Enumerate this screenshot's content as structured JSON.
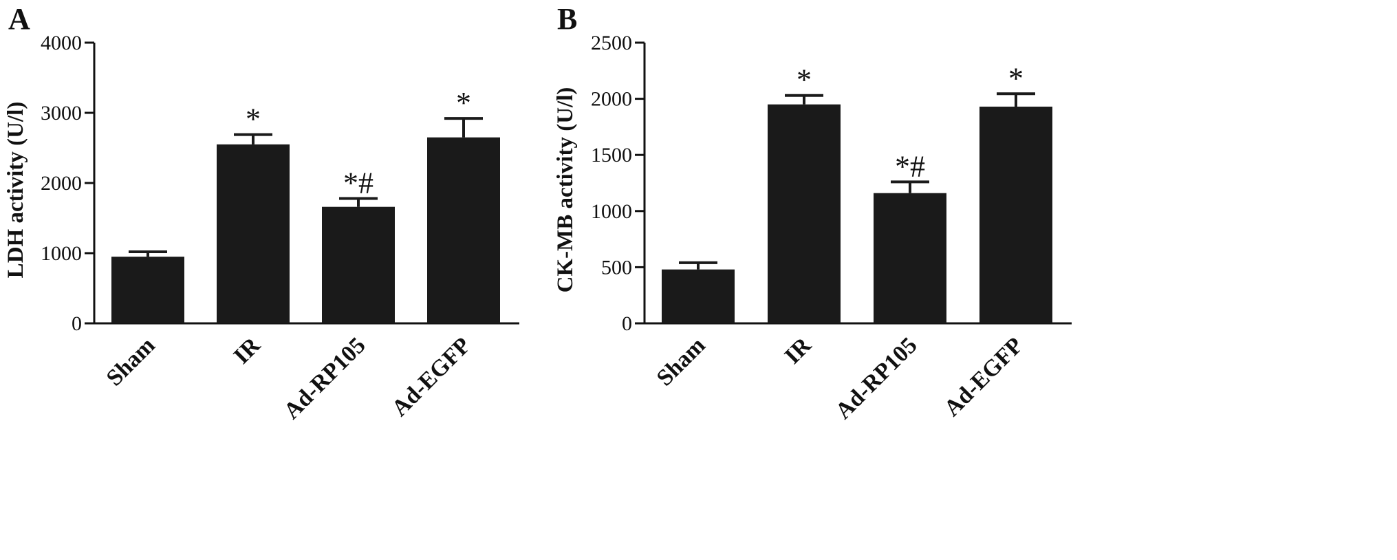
{
  "chart_data": [
    {
      "panel": "A",
      "type": "bar",
      "ylabel": "LDH activity (U/l)",
      "ylim": [
        0,
        4000
      ],
      "yticks": [
        0,
        1000,
        2000,
        3000,
        4000
      ],
      "categories": [
        "Sham",
        "IR",
        "Ad-RP105",
        "Ad-EGFP"
      ],
      "values": [
        950,
        2550,
        1660,
        2650
      ],
      "errors": [
        70,
        140,
        120,
        270
      ],
      "annotations": [
        "",
        "*",
        "*#",
        "*"
      ],
      "bar_color": "#1a1a1a"
    },
    {
      "panel": "B",
      "type": "bar",
      "ylabel": "CK-MB activity (U/l)",
      "ylim": [
        0,
        2500
      ],
      "yticks": [
        0,
        500,
        1000,
        1500,
        2000,
        2500
      ],
      "categories": [
        "Sham",
        "IR",
        "Ad-RP105",
        "Ad-EGFP"
      ],
      "values": [
        480,
        1950,
        1160,
        1930
      ],
      "errors": [
        60,
        80,
        100,
        115
      ],
      "annotations": [
        "",
        "*",
        "*#",
        "*"
      ],
      "bar_color": "#1a1a1a"
    }
  ]
}
